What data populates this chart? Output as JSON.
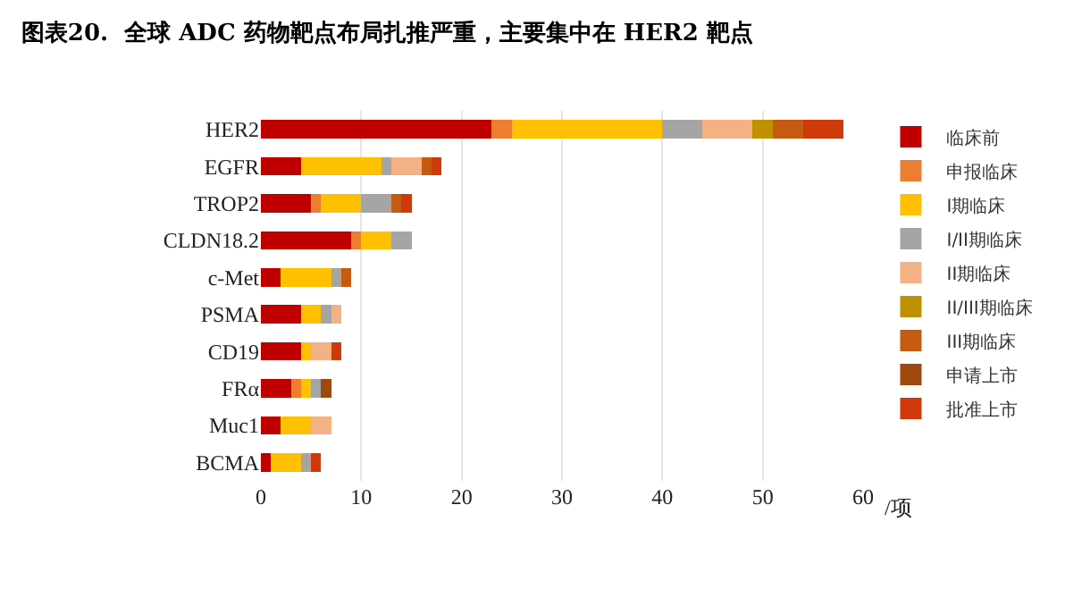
{
  "chart_data": {
    "type": "bar",
    "orientation": "horizontal",
    "stacked": true,
    "title": "图表20.  全球 ADC 药物靶点布局扎推严重，主要集中在 HER2 靶点",
    "xlabel": "/项",
    "categories": [
      "HER2",
      "EGFR",
      "TROP2",
      "CLDN18.2",
      "c-Met",
      "PSMA",
      "CD19",
      "FRα",
      "Muc1",
      "BCMA"
    ],
    "series": [
      {
        "name": "临床前",
        "color": "#c00000",
        "values": [
          23,
          4,
          5,
          9,
          2,
          4,
          4,
          3,
          2,
          1
        ]
      },
      {
        "name": "申报临床",
        "color": "#ed7d31",
        "values": [
          2,
          0,
          1,
          1,
          0,
          0,
          0,
          1,
          0,
          0
        ]
      },
      {
        "name": "I期临床",
        "color": "#ffc000",
        "values": [
          15,
          8,
          4,
          3,
          5,
          2,
          1,
          1,
          3,
          3
        ]
      },
      {
        "name": "I/II期临床",
        "color": "#a5a5a5",
        "values": [
          4,
          1,
          3,
          2,
          1,
          1,
          0,
          1,
          0,
          1
        ]
      },
      {
        "name": "II期临床",
        "color": "#f4b183",
        "values": [
          5,
          3,
          0,
          0,
          0,
          1,
          2,
          0,
          2,
          0
        ]
      },
      {
        "name": "II/III期临床",
        "color": "#bf9000",
        "values": [
          2,
          0,
          0,
          0,
          0,
          0,
          0,
          0,
          0,
          0
        ]
      },
      {
        "name": "III期临床",
        "color": "#c55a11",
        "values": [
          3,
          1,
          1,
          0,
          1,
          0,
          0,
          0,
          0,
          0
        ]
      },
      {
        "name": "申请上市",
        "color": "#9e480e",
        "values": [
          0,
          0,
          0,
          0,
          0,
          0,
          0,
          1,
          0,
          0
        ]
      },
      {
        "name": "批准上市",
        "color": "#d03a0a",
        "values": [
          4,
          1,
          1,
          0,
          0,
          0,
          1,
          0,
          0,
          1
        ]
      }
    ],
    "xlim": [
      0,
      60
    ],
    "xticks": [
      0,
      10,
      20,
      30,
      40,
      50,
      60
    ],
    "grid": "x",
    "legend": "right"
  }
}
